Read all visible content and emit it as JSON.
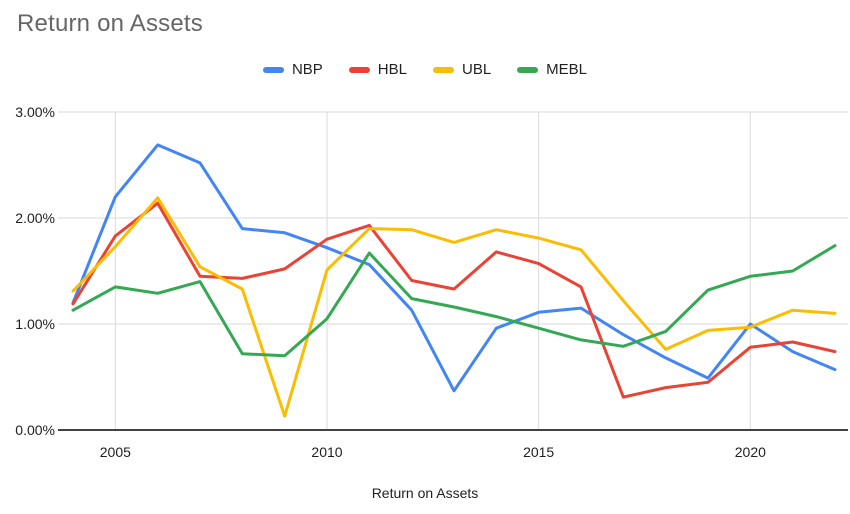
{
  "chart_data": {
    "type": "line",
    "title": "Return on Assets",
    "xlabel": "Return on Assets",
    "ylabel": "",
    "x": [
      2004,
      2005,
      2006,
      2007,
      2008,
      2009,
      2010,
      2011,
      2012,
      2013,
      2014,
      2015,
      2016,
      2017,
      2018,
      2019,
      2020,
      2021,
      2022
    ],
    "xlim": [
      2004,
      2022
    ],
    "ylim": [
      0,
      3
    ],
    "grid": true,
    "legend_position": "top",
    "y_ticks": [
      {
        "label": "0.00%",
        "value": 0
      },
      {
        "label": "1.00%",
        "value": 1
      },
      {
        "label": "2.00%",
        "value": 2
      },
      {
        "label": "3.00%",
        "value": 3
      }
    ],
    "x_ticks": [
      {
        "label": "2005",
        "value": 2005
      },
      {
        "label": "2010",
        "value": 2010
      },
      {
        "label": "2015",
        "value": 2015
      },
      {
        "label": "2020",
        "value": 2020
      }
    ],
    "series": [
      {
        "name": "NBP",
        "color": "#4285F4",
        "values": [
          1.2,
          2.2,
          2.69,
          2.52,
          1.9,
          1.86,
          1.72,
          1.56,
          1.13,
          0.37,
          0.96,
          1.11,
          1.15,
          0.9,
          0.68,
          0.49,
          1.0,
          0.74,
          0.57
        ]
      },
      {
        "name": "HBL",
        "color": "#EA4335",
        "values": [
          1.19,
          1.83,
          2.14,
          1.45,
          1.43,
          1.52,
          1.8,
          1.93,
          1.41,
          1.33,
          1.68,
          1.57,
          1.35,
          0.31,
          0.4,
          0.45,
          0.78,
          0.83,
          0.74
        ]
      },
      {
        "name": "UBL",
        "color": "#FBBC04",
        "values": [
          1.31,
          1.73,
          2.19,
          1.54,
          1.33,
          0.13,
          1.51,
          1.9,
          1.89,
          1.77,
          1.89,
          1.81,
          1.7,
          1.22,
          0.76,
          0.94,
          0.97,
          1.13,
          1.1
        ]
      },
      {
        "name": "MEBL",
        "color": "#34A853",
        "values": [
          1.13,
          1.35,
          1.29,
          1.4,
          0.72,
          0.7,
          1.05,
          1.67,
          1.24,
          1.16,
          1.07,
          0.96,
          0.85,
          0.79,
          0.93,
          1.32,
          1.45,
          1.5,
          1.74
        ]
      }
    ],
    "gridline_color": "#dadada",
    "baseline_color": "#424242",
    "tick_label_color": "#1f1f1f",
    "title_color": "#666666"
  }
}
